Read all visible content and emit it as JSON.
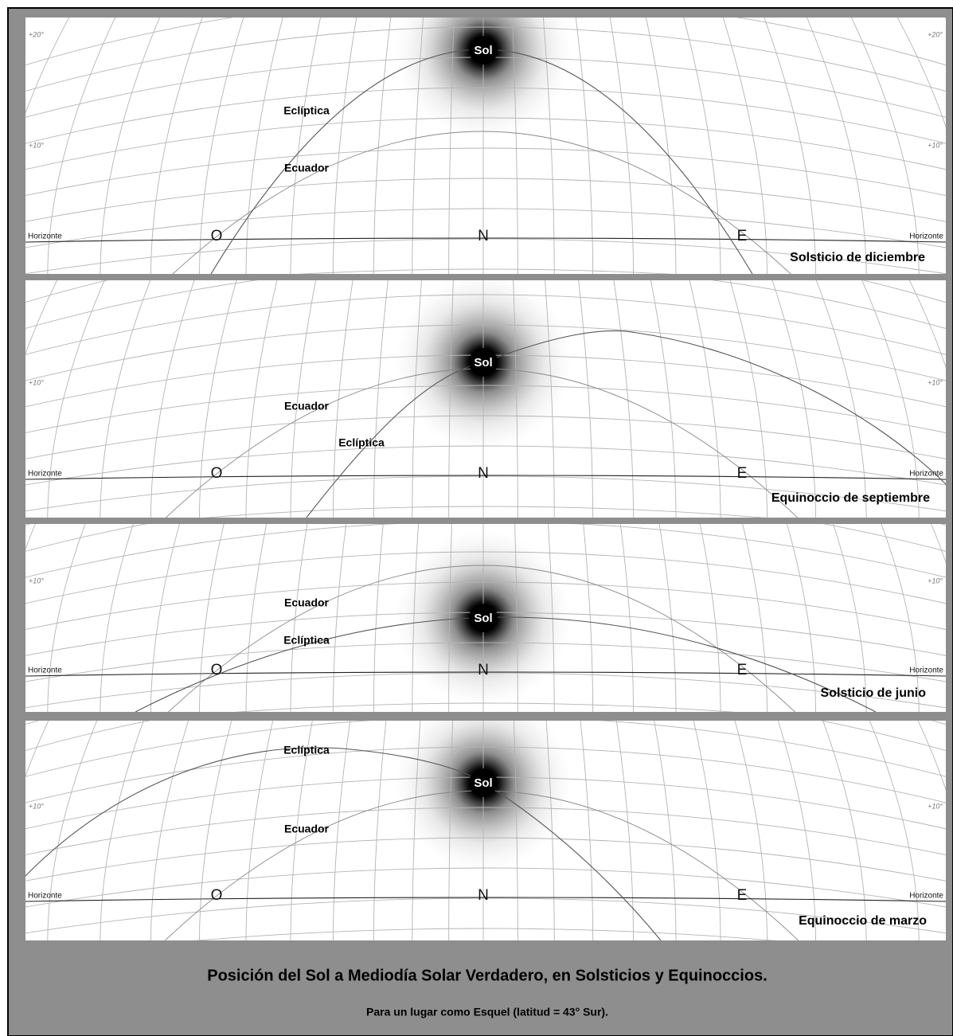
{
  "panels": [
    {
      "caption": "Solsticio de diciembre",
      "sol": "Sol",
      "ecliptica": "Eclíptica",
      "ecuador": "Ecuador",
      "horizonte": [
        "Horizonte",
        "Horizonte"
      ],
      "cardinals": [
        "O",
        "N",
        "E"
      ],
      "degrees": [
        "+20°",
        "+20°",
        "+10°",
        "+10°"
      ]
    },
    {
      "caption": "Equinoccio de septiembre",
      "sol": "Sol",
      "ecliptica": "Eclíptica",
      "ecuador": "Ecuador",
      "horizonte": [
        "Horizonte",
        "Horizonte"
      ],
      "cardinals": [
        "O",
        "N",
        "E"
      ],
      "degrees": [
        "+10°",
        "+10°"
      ]
    },
    {
      "caption": "Solsticio de junio",
      "sol": "Sol",
      "ecliptica": "Eclíptica",
      "ecuador": "Ecuador",
      "horizonte": [
        "Horizonte",
        "Horizonte"
      ],
      "cardinals": [
        "O",
        "N",
        "E"
      ],
      "degrees": [
        "+10°",
        "+10°"
      ]
    },
    {
      "caption": "Equinoccio de marzo",
      "sol": "Sol",
      "ecliptica": "Eclíptica",
      "ecuador": "Ecuador",
      "horizonte": [
        "Horizonte",
        "Horizonte"
      ],
      "cardinals": [
        "O",
        "N",
        "E"
      ],
      "degrees": [
        "+10°",
        "+10°"
      ]
    }
  ],
  "title": "Posición del Sol a Mediodía Solar Verdadero, en Solsticios y Equinoccios.",
  "subtitle": "Para un lugar como Esquel (latitud = 43° Sur)."
}
